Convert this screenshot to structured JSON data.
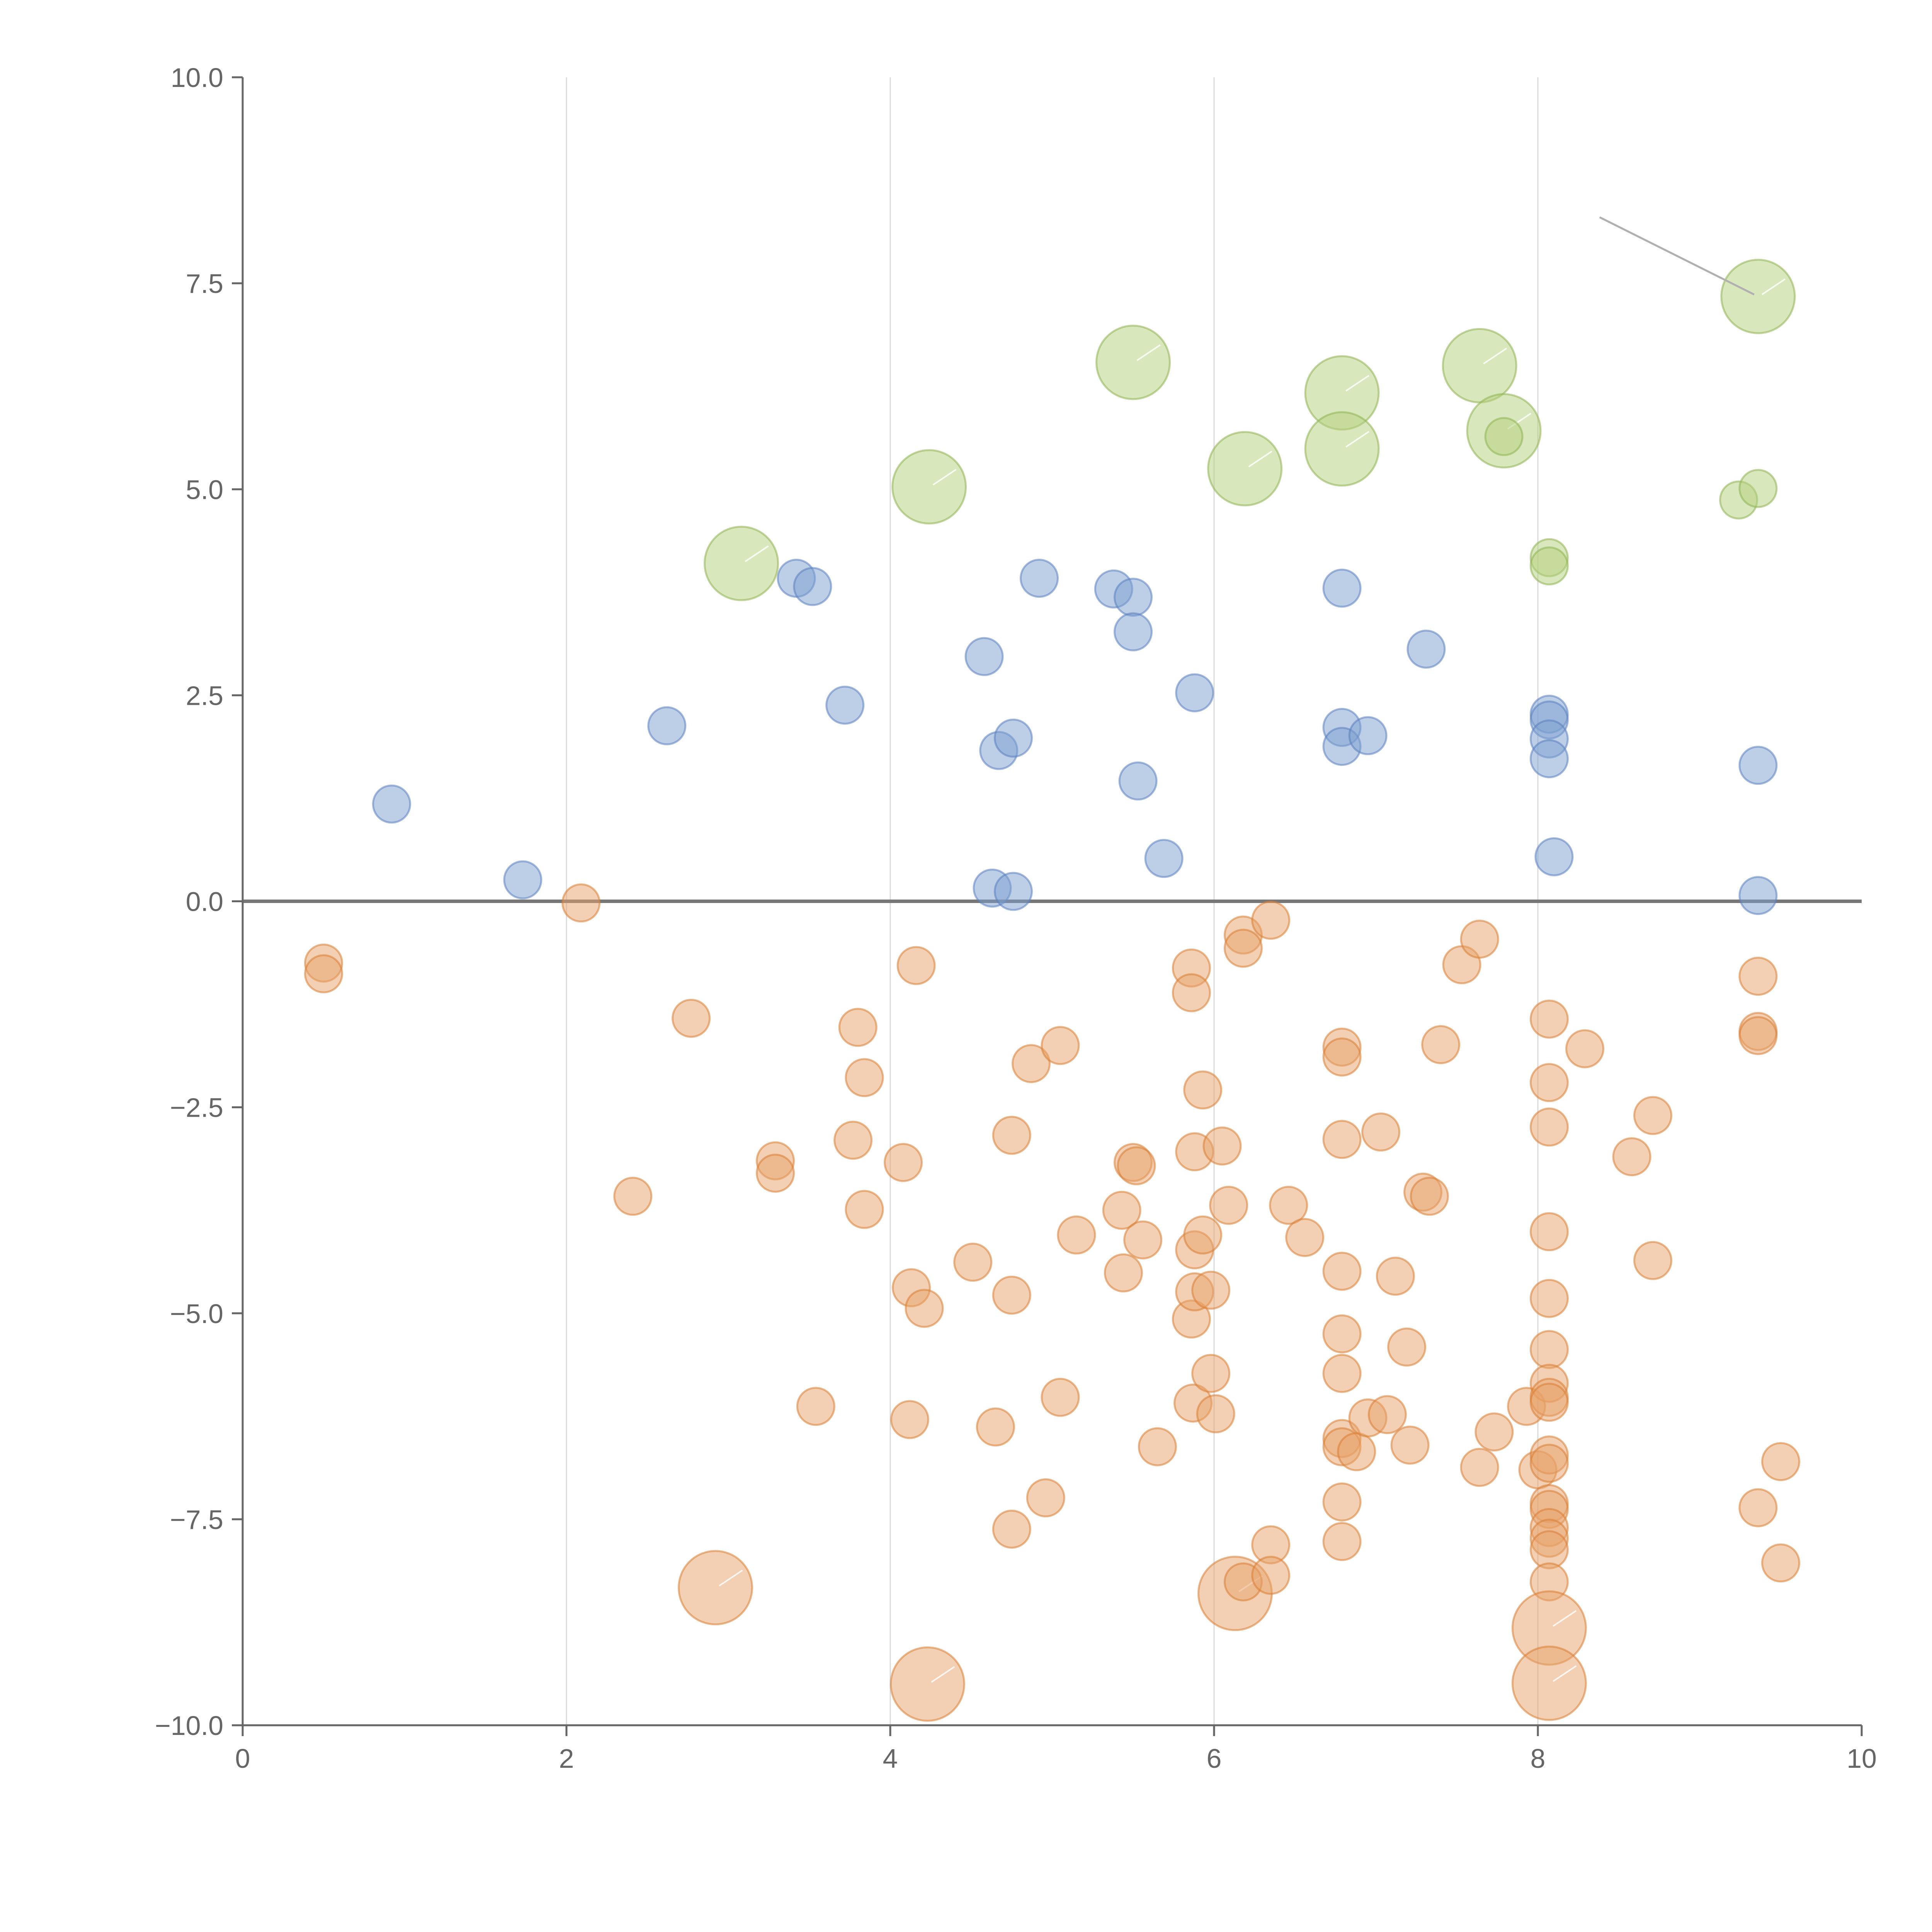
{
  "chart_data": {
    "type": "scatter",
    "title": "",
    "xlabel": "",
    "ylabel": "",
    "xlim": [
      0,
      10
    ],
    "ylim": [
      -10,
      10
    ],
    "x_ticks": [
      "0",
      "2",
      "4",
      "6",
      "8",
      "10"
    ],
    "y_ticks": [
      "10.0",
      "7.5",
      "5.0",
      "2.5",
      "0.0",
      "−2.5",
      "−5.0",
      "−7.5",
      "−10.0"
    ],
    "grid": "vertical",
    "legend": "none",
    "colors": {
      "blue": "#7b9fd0",
      "blue_stroke": "#5b80bf",
      "orange": "#e8a16a",
      "orange_stroke": "#d97d33",
      "green": "#b3cf7c",
      "green_stroke": "#8fb352"
    },
    "series": [
      {
        "color": "blue",
        "points": [
          {
            "x": 0.92,
            "y": 1.18,
            "s": 1
          },
          {
            "x": 1.73,
            "y": 0.26,
            "s": 1
          },
          {
            "x": 2.62,
            "y": 2.13,
            "s": 1
          },
          {
            "x": 3.42,
            "y": 3.92,
            "s": 1
          },
          {
            "x": 3.52,
            "y": 3.82,
            "s": 1
          },
          {
            "x": 3.72,
            "y": 2.38,
            "s": 1
          },
          {
            "x": 4.58,
            "y": 2.97,
            "s": 1
          },
          {
            "x": 4.67,
            "y": 1.83,
            "s": 1
          },
          {
            "x": 4.76,
            "y": 1.98,
            "s": 1
          },
          {
            "x": 4.63,
            "y": 0.16,
            "s": 1
          },
          {
            "x": 4.76,
            "y": 0.12,
            "s": 1
          },
          {
            "x": 4.92,
            "y": 3.92,
            "s": 1
          },
          {
            "x": 5.38,
            "y": 3.79,
            "s": 1
          },
          {
            "x": 5.5,
            "y": 3.69,
            "s": 1
          },
          {
            "x": 5.5,
            "y": 3.27,
            "s": 1
          },
          {
            "x": 5.53,
            "y": 1.46,
            "s": 1
          },
          {
            "x": 5.69,
            "y": 0.52,
            "s": 1
          },
          {
            "x": 5.88,
            "y": 2.53,
            "s": 1
          },
          {
            "x": 6.79,
            "y": 3.8,
            "s": 1
          },
          {
            "x": 6.79,
            "y": 2.11,
            "s": 1
          },
          {
            "x": 6.79,
            "y": 1.88,
            "s": 1
          },
          {
            "x": 6.95,
            "y": 2.01,
            "s": 1
          },
          {
            "x": 7.31,
            "y": 3.06,
            "s": 1
          },
          {
            "x": 8.07,
            "y": 2.27,
            "s": 1
          },
          {
            "x": 8.07,
            "y": 2.2,
            "s": 1
          },
          {
            "x": 8.07,
            "y": 1.97,
            "s": 1
          },
          {
            "x": 8.07,
            "y": 1.73,
            "s": 1
          },
          {
            "x": 8.1,
            "y": 0.54,
            "s": 1
          },
          {
            "x": 9.36,
            "y": 1.65,
            "s": 1
          },
          {
            "x": 9.36,
            "y": 0.07,
            "s": 1
          }
        ]
      },
      {
        "color": "green",
        "points": [
          {
            "x": 3.08,
            "y": 4.1,
            "s": 2
          },
          {
            "x": 4.24,
            "y": 5.03,
            "s": 2
          },
          {
            "x": 5.5,
            "y": 6.54,
            "s": 2
          },
          {
            "x": 6.19,
            "y": 5.25,
            "s": 2
          },
          {
            "x": 6.79,
            "y": 6.17,
            "s": 2
          },
          {
            "x": 6.79,
            "y": 5.49,
            "s": 2
          },
          {
            "x": 7.64,
            "y": 6.5,
            "s": 2
          },
          {
            "x": 7.79,
            "y": 5.71,
            "s": 2
          },
          {
            "x": 7.79,
            "y": 5.64,
            "s": 1
          },
          {
            "x": 8.07,
            "y": 4.17,
            "s": 1
          },
          {
            "x": 8.07,
            "y": 4.07,
            "s": 1
          },
          {
            "x": 9.24,
            "y": 4.87,
            "s": 1
          },
          {
            "x": 9.36,
            "y": 5.01,
            "s": 1
          },
          {
            "x": 9.36,
            "y": 7.34,
            "s": 2
          }
        ]
      },
      {
        "color": "orange",
        "points": [
          {
            "x": 0.5,
            "y": -0.75,
            "s": 1
          },
          {
            "x": 0.5,
            "y": -0.88,
            "s": 1
          },
          {
            "x": 2.09,
            "y": -0.02,
            "s": 1
          },
          {
            "x": 2.41,
            "y": -3.58,
            "s": 1
          },
          {
            "x": 2.77,
            "y": -1.42,
            "s": 1
          },
          {
            "x": 2.92,
            "y": -8.33,
            "s": 2
          },
          {
            "x": 3.29,
            "y": -3.15,
            "s": 1
          },
          {
            "x": 3.29,
            "y": -3.3,
            "s": 1
          },
          {
            "x": 3.54,
            "y": -6.13,
            "s": 1
          },
          {
            "x": 3.77,
            "y": -2.9,
            "s": 1
          },
          {
            "x": 3.8,
            "y": -1.53,
            "s": 1
          },
          {
            "x": 3.84,
            "y": -2.14,
            "s": 1
          },
          {
            "x": 3.84,
            "y": -3.74,
            "s": 1
          },
          {
            "x": 4.08,
            "y": -3.17,
            "s": 1
          },
          {
            "x": 4.12,
            "y": -6.29,
            "s": 1
          },
          {
            "x": 4.13,
            "y": -4.69,
            "s": 1
          },
          {
            "x": 4.16,
            "y": -0.78,
            "s": 1
          },
          {
            "x": 4.21,
            "y": -4.94,
            "s": 1
          },
          {
            "x": 4.23,
            "y": -9.5,
            "s": 2
          },
          {
            "x": 4.51,
            "y": -4.38,
            "s": 1
          },
          {
            "x": 4.65,
            "y": -6.38,
            "s": 1
          },
          {
            "x": 4.75,
            "y": -2.84,
            "s": 1
          },
          {
            "x": 4.75,
            "y": -4.78,
            "s": 1
          },
          {
            "x": 4.75,
            "y": -7.62,
            "s": 1
          },
          {
            "x": 4.87,
            "y": -1.97,
            "s": 1
          },
          {
            "x": 4.96,
            "y": -7.24,
            "s": 1
          },
          {
            "x": 5.05,
            "y": -1.75,
            "s": 1
          },
          {
            "x": 5.05,
            "y": -6.02,
            "s": 1
          },
          {
            "x": 5.15,
            "y": -4.05,
            "s": 1
          },
          {
            "x": 5.43,
            "y": -3.75,
            "s": 1
          },
          {
            "x": 5.44,
            "y": -4.51,
            "s": 1
          },
          {
            "x": 5.5,
            "y": -3.17,
            "s": 1
          },
          {
            "x": 5.52,
            "y": -3.21,
            "s": 1
          },
          {
            "x": 5.56,
            "y": -4.11,
            "s": 1
          },
          {
            "x": 5.65,
            "y": -6.62,
            "s": 1
          },
          {
            "x": 5.86,
            "y": -0.81,
            "s": 1
          },
          {
            "x": 5.86,
            "y": -1.11,
            "s": 1
          },
          {
            "x": 5.86,
            "y": -5.07,
            "s": 1
          },
          {
            "x": 5.87,
            "y": -6.09,
            "s": 1
          },
          {
            "x": 5.88,
            "y": -3.04,
            "s": 1
          },
          {
            "x": 5.88,
            "y": -4.23,
            "s": 1
          },
          {
            "x": 5.88,
            "y": -4.74,
            "s": 1
          },
          {
            "x": 5.93,
            "y": -2.29,
            "s": 1
          },
          {
            "x": 5.93,
            "y": -4.05,
            "s": 1
          },
          {
            "x": 5.98,
            "y": -4.72,
            "s": 1
          },
          {
            "x": 5.98,
            "y": -5.73,
            "s": 1
          },
          {
            "x": 6.01,
            "y": -6.22,
            "s": 1
          },
          {
            "x": 6.05,
            "y": -2.97,
            "s": 1
          },
          {
            "x": 6.09,
            "y": -3.69,
            "s": 1
          },
          {
            "x": 6.13,
            "y": -8.4,
            "s": 2
          },
          {
            "x": 6.18,
            "y": -0.41,
            "s": 1
          },
          {
            "x": 6.18,
            "y": -0.57,
            "s": 1
          },
          {
            "x": 6.18,
            "y": -8.26,
            "s": 1
          },
          {
            "x": 6.35,
            "y": -0.23,
            "s": 1
          },
          {
            "x": 6.35,
            "y": -7.81,
            "s": 1
          },
          {
            "x": 6.35,
            "y": -8.18,
            "s": 1
          },
          {
            "x": 6.46,
            "y": -3.69,
            "s": 1
          },
          {
            "x": 6.56,
            "y": -4.08,
            "s": 1
          },
          {
            "x": 6.79,
            "y": -1.77,
            "s": 1
          },
          {
            "x": 6.79,
            "y": -1.89,
            "s": 1
          },
          {
            "x": 6.79,
            "y": -2.89,
            "s": 1
          },
          {
            "x": 6.79,
            "y": -4.49,
            "s": 1
          },
          {
            "x": 6.79,
            "y": -5.25,
            "s": 1
          },
          {
            "x": 6.79,
            "y": -5.73,
            "s": 1
          },
          {
            "x": 6.79,
            "y": -6.52,
            "s": 1
          },
          {
            "x": 6.79,
            "y": -6.62,
            "s": 1
          },
          {
            "x": 6.79,
            "y": -7.29,
            "s": 1
          },
          {
            "x": 6.79,
            "y": -7.77,
            "s": 1
          },
          {
            "x": 6.88,
            "y": -6.68,
            "s": 1
          },
          {
            "x": 6.95,
            "y": -6.27,
            "s": 1
          },
          {
            "x": 7.03,
            "y": -2.8,
            "s": 1
          },
          {
            "x": 7.07,
            "y": -6.23,
            "s": 1
          },
          {
            "x": 7.12,
            "y": -4.55,
            "s": 1
          },
          {
            "x": 7.19,
            "y": -5.41,
            "s": 1
          },
          {
            "x": 7.21,
            "y": -6.6,
            "s": 1
          },
          {
            "x": 7.29,
            "y": -3.53,
            "s": 1
          },
          {
            "x": 7.33,
            "y": -3.58,
            "s": 1
          },
          {
            "x": 7.4,
            "y": -1.74,
            "s": 1
          },
          {
            "x": 7.53,
            "y": -0.77,
            "s": 1
          },
          {
            "x": 7.64,
            "y": -0.46,
            "s": 1
          },
          {
            "x": 7.64,
            "y": -6.87,
            "s": 1
          },
          {
            "x": 7.73,
            "y": -6.44,
            "s": 1
          },
          {
            "x": 7.93,
            "y": -6.13,
            "s": 1
          },
          {
            "x": 8.0,
            "y": -6.9,
            "s": 1
          },
          {
            "x": 8.07,
            "y": -1.43,
            "s": 1
          },
          {
            "x": 8.07,
            "y": -2.2,
            "s": 1
          },
          {
            "x": 8.07,
            "y": -2.74,
            "s": 1
          },
          {
            "x": 8.07,
            "y": -4.01,
            "s": 1
          },
          {
            "x": 8.07,
            "y": -4.82,
            "s": 1
          },
          {
            "x": 8.07,
            "y": -5.44,
            "s": 1
          },
          {
            "x": 8.07,
            "y": -5.85,
            "s": 1
          },
          {
            "x": 8.07,
            "y": -6.02,
            "s": 1
          },
          {
            "x": 8.07,
            "y": -6.08,
            "s": 1
          },
          {
            "x": 8.07,
            "y": -6.72,
            "s": 1
          },
          {
            "x": 8.07,
            "y": -6.82,
            "s": 1
          },
          {
            "x": 8.07,
            "y": -7.31,
            "s": 1
          },
          {
            "x": 8.07,
            "y": -7.38,
            "s": 1
          },
          {
            "x": 8.07,
            "y": -7.6,
            "s": 1
          },
          {
            "x": 8.07,
            "y": -7.73,
            "s": 1
          },
          {
            "x": 8.07,
            "y": -7.87,
            "s": 1
          },
          {
            "x": 8.07,
            "y": -8.26,
            "s": 1
          },
          {
            "x": 8.07,
            "y": -8.82,
            "s": 2
          },
          {
            "x": 8.07,
            "y": -9.49,
            "s": 2
          },
          {
            "x": 8.29,
            "y": -1.79,
            "s": 1
          },
          {
            "x": 8.58,
            "y": -3.1,
            "s": 1
          },
          {
            "x": 8.71,
            "y": -2.6,
            "s": 1
          },
          {
            "x": 8.71,
            "y": -4.36,
            "s": 1
          },
          {
            "x": 9.36,
            "y": -0.91,
            "s": 1
          },
          {
            "x": 9.36,
            "y": -1.58,
            "s": 1
          },
          {
            "x": 9.36,
            "y": -1.63,
            "s": 1
          },
          {
            "x": 9.36,
            "y": -7.36,
            "s": 1
          },
          {
            "x": 9.5,
            "y": -6.8,
            "s": 1
          },
          {
            "x": 9.5,
            "y": -8.03,
            "s": 1
          }
        ]
      }
    ]
  }
}
